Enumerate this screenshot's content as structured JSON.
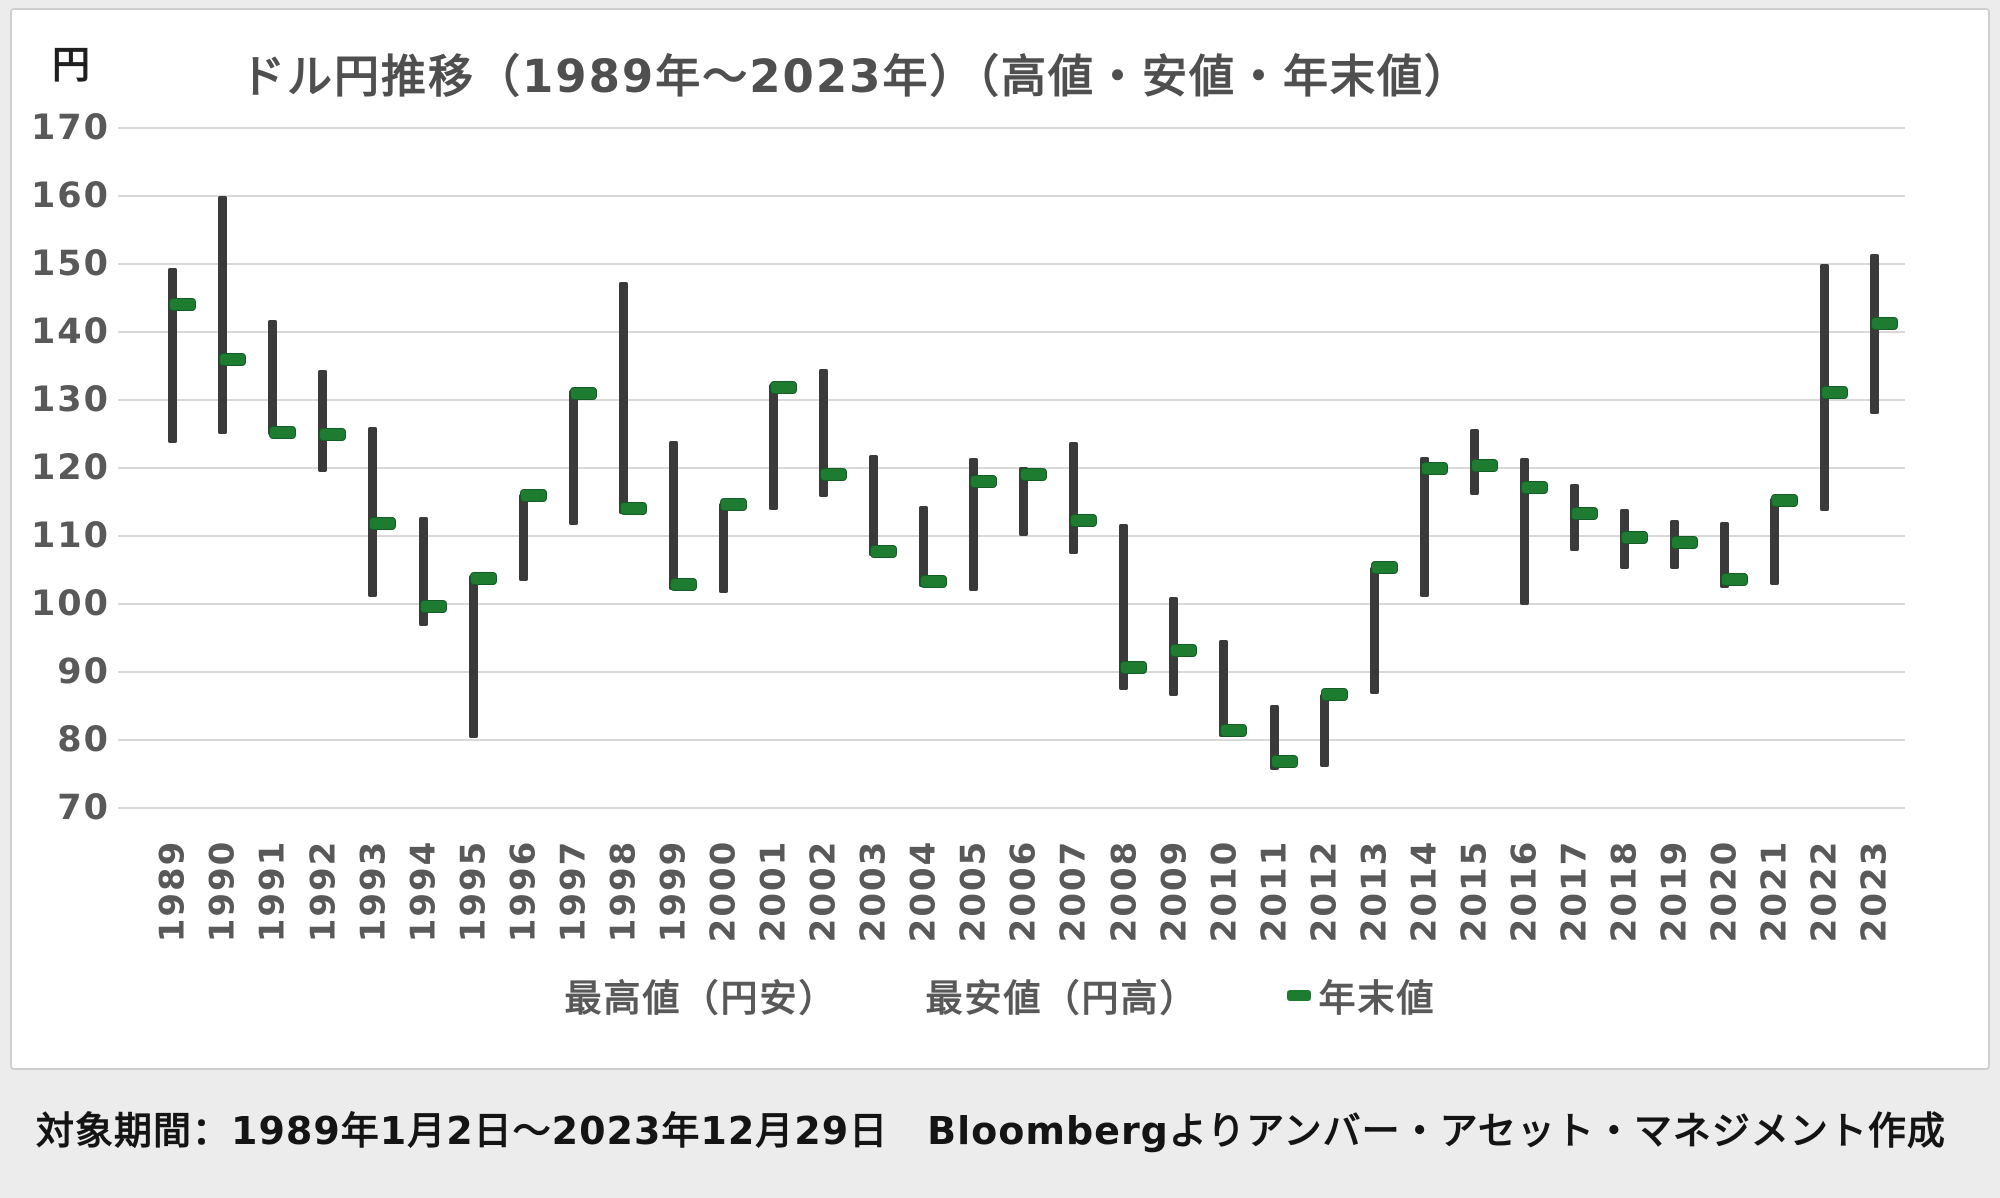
{
  "footer_note": "対象期間：1989年1月2日～2023年12月29日　Bloombergよりアンバー・アセット・マネジメント作成",
  "chart_data": {
    "type": "bar",
    "subtype": "high-low-close-range",
    "title": "ドル円推移（1989年～2023年）（高値・安値・年末値）",
    "unit_label": "円",
    "xlabel": "",
    "ylabel": "円",
    "ylim": [
      70,
      170
    ],
    "grid": "horizontal",
    "legend_position": "bottom",
    "y_ticks": [
      170,
      160,
      150,
      140,
      130,
      120,
      110,
      100,
      90,
      80,
      70
    ],
    "legend": [
      {
        "label": "最高値（円安）",
        "marker": null
      },
      {
        "label": "最安値（円高）",
        "marker": null
      },
      {
        "label": "年末値",
        "marker": "green-dash"
      }
    ],
    "series": [
      {
        "name": "最高値（円安）",
        "role": "high"
      },
      {
        "name": "最安値（円高）",
        "role": "low"
      },
      {
        "name": "年末値",
        "role": "close"
      }
    ],
    "years": [
      1989,
      1990,
      1991,
      1992,
      1993,
      1994,
      1995,
      1996,
      1997,
      1998,
      1999,
      2000,
      2001,
      2002,
      2003,
      2004,
      2005,
      2006,
      2007,
      2008,
      2009,
      2010,
      2011,
      2012,
      2013,
      2014,
      2015,
      2016,
      2017,
      2018,
      2019,
      2020,
      2021,
      2022,
      2023
    ],
    "high": [
      149.4,
      160.0,
      141.8,
      134.4,
      126.0,
      112.8,
      104.3,
      116.2,
      131.4,
      147.4,
      124.0,
      114.8,
      132.3,
      134.6,
      121.9,
      114.4,
      121.4,
      120.2,
      123.8,
      111.8,
      101.0,
      94.7,
      85.1,
      86.7,
      105.4,
      121.6,
      125.8,
      121.4,
      117.7,
      113.9,
      112.3,
      112.0,
      115.6,
      150.0,
      151.5
    ],
    "low": [
      123.7,
      125.0,
      124.9,
      119.4,
      101.0,
      96.7,
      80.3,
      103.4,
      111.6,
      113.3,
      102.0,
      101.6,
      113.8,
      115.8,
      107.0,
      102.5,
      101.9,
      110.0,
      107.4,
      87.3,
      86.4,
      80.4,
      75.6,
      76.0,
      86.8,
      101.1,
      116.1,
      99.9,
      107.8,
      105.1,
      105.2,
      102.4,
      102.8,
      113.7,
      127.9
    ],
    "close": [
      144.0,
      136.0,
      125.2,
      125.0,
      111.9,
      99.6,
      103.8,
      116.0,
      131.0,
      114.0,
      102.8,
      114.6,
      131.8,
      119.0,
      107.7,
      103.3,
      118.0,
      119.1,
      112.3,
      90.7,
      93.1,
      81.4,
      76.9,
      86.7,
      105.4,
      119.9,
      120.4,
      117.1,
      113.3,
      109.8,
      109.0,
      103.6,
      115.2,
      131.1,
      141.3
    ],
    "colors": {
      "range_bar": "#3a3a3a",
      "year_end_tick": "#1e7c31",
      "gridline": "#d9d9d9",
      "axis_text": "#595959",
      "title_text": "#4f4f4f",
      "footer_text": "#141414",
      "card_background": "#ffffff",
      "page_background": "#ececec"
    }
  }
}
